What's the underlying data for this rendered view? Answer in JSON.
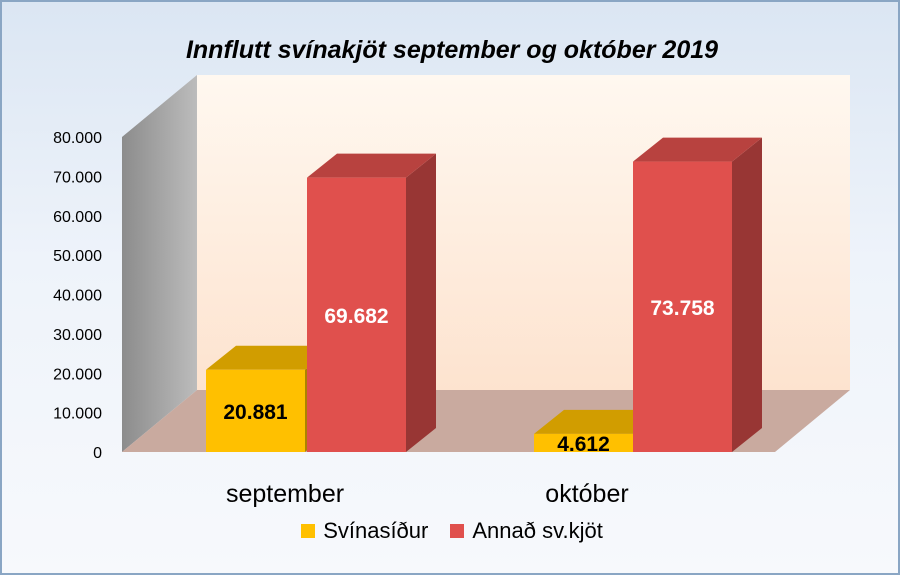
{
  "chart_data": {
    "type": "bar",
    "title": "Innflutt svínakjöt september og október 2019",
    "categories": [
      "september",
      "október"
    ],
    "series": [
      {
        "name": "Svínasíður",
        "values": [
          20881,
          4612
        ],
        "labels": [
          "20.881",
          "4.612"
        ],
        "color": "#ffc000",
        "label_color": "#000000"
      },
      {
        "name": "Annað sv.kjöt",
        "values": [
          69682,
          73758
        ],
        "labels": [
          "69.682",
          "73.758"
        ],
        "color": "#e0504d",
        "label_color": "#ffffff"
      }
    ],
    "ylim": [
      0,
      80000
    ],
    "yticks": [
      0,
      10000,
      20000,
      30000,
      40000,
      50000,
      60000,
      70000,
      80000
    ],
    "ytick_labels": [
      "0",
      "10.000",
      "20.000",
      "30.000",
      "40.000",
      "50.000",
      "60.000",
      "70.000",
      "80.000"
    ],
    "grid": false,
    "legend_position": "bottom",
    "style": "3d-column"
  }
}
